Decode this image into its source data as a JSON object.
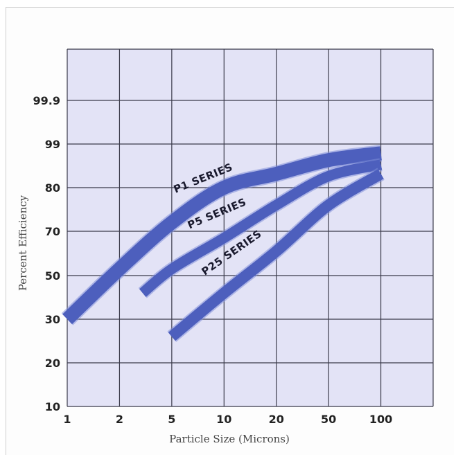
{
  "chart_data": {
    "type": "line",
    "title": "",
    "xlabel": "Particle Size (Microns)",
    "ylabel": "Percent Efficiency",
    "x_scale": "log",
    "x_ticks": [
      "1",
      "2",
      "5",
      "10",
      "20",
      "50",
      "100"
    ],
    "y_ticks": [
      "10",
      "20",
      "30",
      "50",
      "70",
      "80",
      "99",
      "99.9"
    ],
    "grid": true,
    "colors": {
      "background": "#e3e3f6",
      "grid": "#3a3a4a",
      "band": "#4d5fbd",
      "band_edge": "#7f8ed8"
    },
    "series": [
      {
        "name": "P1 SERIES",
        "points": [
          {
            "x": 1,
            "y": 30
          },
          {
            "x": 2,
            "y": 53
          },
          {
            "x": 5,
            "y": 72
          },
          {
            "x": 10,
            "y": 80
          },
          {
            "x": 20,
            "y": 86
          },
          {
            "x": 50,
            "y": 92
          },
          {
            "x": 100,
            "y": 95
          }
        ]
      },
      {
        "name": "P5 SERIES",
        "points": [
          {
            "x": 3,
            "y": 42
          },
          {
            "x": 5,
            "y": 53
          },
          {
            "x": 10,
            "y": 67
          },
          {
            "x": 20,
            "y": 76
          },
          {
            "x": 50,
            "y": 85
          },
          {
            "x": 100,
            "y": 90
          }
        ]
      },
      {
        "name": "P25 SERIES",
        "points": [
          {
            "x": 5,
            "y": 26
          },
          {
            "x": 10,
            "y": 42
          },
          {
            "x": 20,
            "y": 61
          },
          {
            "x": 50,
            "y": 76
          },
          {
            "x": 100,
            "y": 86
          }
        ]
      }
    ]
  }
}
